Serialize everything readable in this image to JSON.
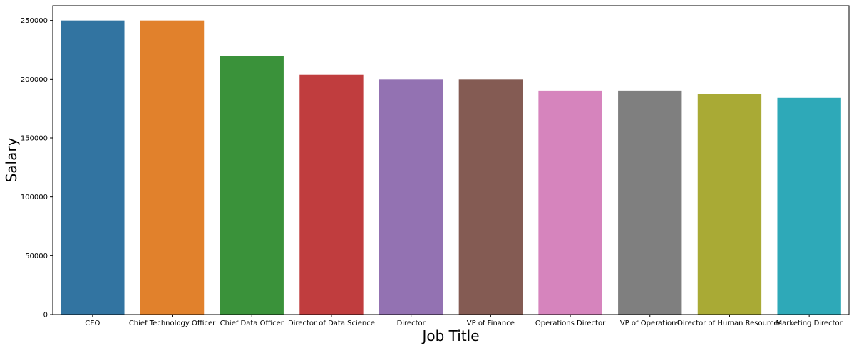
{
  "chart_data": {
    "type": "bar",
    "title": "",
    "xlabel": "Job Title",
    "ylabel": "Salary",
    "ylim": [
      0,
      262500
    ],
    "yticks": [
      0,
      50000,
      100000,
      150000,
      200000,
      250000
    ],
    "ytick_labels": [
      "0",
      "50000",
      "100000",
      "150000",
      "200000",
      "250000"
    ],
    "grid": false,
    "legend": "none",
    "categories": [
      "CEO",
      "Chief Technology Officer",
      "Chief Data Officer",
      "Director of Data Science",
      "Director",
      "VP of Finance",
      "Operations Director",
      "VP of Operations",
      "Director of Human Resources",
      "Marketing Director"
    ],
    "values": [
      250000,
      250000,
      220000,
      204000,
      200000,
      200000,
      190000,
      190000,
      187500,
      184000
    ],
    "colors": [
      "#3274a1",
      "#e1812c",
      "#3a923a",
      "#c03d3e",
      "#9372b2",
      "#845b53",
      "#d684bd",
      "#7f7f7f",
      "#a9aa35",
      "#2ea9b8"
    ]
  }
}
